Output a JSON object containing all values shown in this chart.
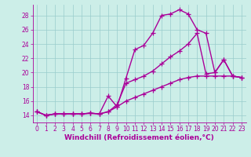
{
  "xlabel": "Windchill (Refroidissement éolien,°C)",
  "bg_color": "#cceee8",
  "line_color": "#aa0099",
  "grid_color": "#99cccc",
  "xlim": [
    -0.5,
    23.5
  ],
  "ylim": [
    13.0,
    29.5
  ],
  "xticks": [
    0,
    1,
    2,
    3,
    4,
    5,
    6,
    7,
    8,
    9,
    10,
    11,
    12,
    13,
    14,
    15,
    16,
    17,
    18,
    19,
    20,
    21,
    22,
    23
  ],
  "yticks": [
    14,
    16,
    18,
    20,
    22,
    24,
    26,
    28
  ],
  "line1": [
    14.5,
    14.0,
    14.2,
    14.2,
    14.2,
    14.2,
    14.3,
    14.2,
    16.7,
    15.2,
    19.2,
    23.2,
    23.8,
    25.5,
    28.0,
    28.2,
    28.8,
    28.2,
    26.0,
    25.5,
    20.0,
    21.8,
    19.5,
    19.3
  ],
  "line2": [
    14.5,
    14.0,
    14.2,
    14.2,
    14.2,
    14.2,
    14.3,
    14.2,
    14.5,
    15.5,
    18.5,
    19.0,
    19.5,
    20.2,
    21.2,
    22.2,
    23.0,
    24.0,
    25.5,
    19.8,
    20.0,
    21.8,
    19.5,
    19.3
  ],
  "line3": [
    14.5,
    14.0,
    14.2,
    14.2,
    14.2,
    14.2,
    14.3,
    14.2,
    14.5,
    15.2,
    16.0,
    16.5,
    17.0,
    17.5,
    18.0,
    18.5,
    19.0,
    19.3,
    19.5,
    19.5,
    19.5,
    19.5,
    19.5,
    19.3
  ],
  "marker": "+",
  "markersize": 4,
  "linewidth": 1.0,
  "tick_fontsize": 5.5,
  "label_fontsize": 6.5
}
